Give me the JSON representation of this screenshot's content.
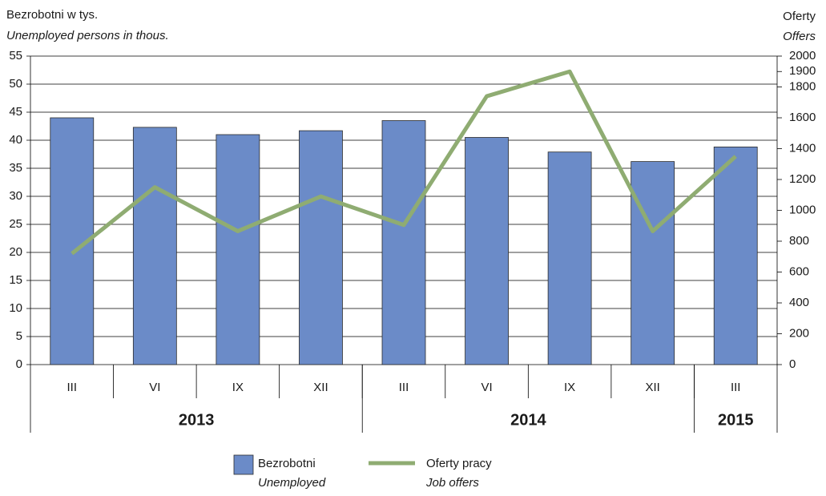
{
  "chart_data": {
    "type": "bar_line",
    "y_title": "Bezrobotni w tys.",
    "y_title_en": "Unemployed persons in thous.",
    "y2_title": "Oferty",
    "y2_title_en": "Offers",
    "categories": [
      "III",
      "VI",
      "IX",
      "XII",
      "III",
      "VI",
      "IX",
      "XII",
      "III"
    ],
    "groups": [
      {
        "label": "2013",
        "span": 4
      },
      {
        "label": "2014",
        "span": 4
      },
      {
        "label": "2015",
        "span": 1
      }
    ],
    "series": [
      {
        "name": "Bezrobotni",
        "name_en": "Unemployed",
        "type": "bar",
        "color": "#6b8bc8",
        "values": [
          44,
          42.3,
          41,
          41.7,
          43.5,
          40.5,
          37.9,
          36.2,
          38.8
        ]
      },
      {
        "name": "Oferty pracy",
        "name_en": "Job offers",
        "type": "line",
        "color": "#8fac72",
        "axis": "y2",
        "values": [
          720,
          1150,
          865,
          1090,
          905,
          1740,
          1900,
          865,
          1350
        ]
      }
    ],
    "ylim": [
      0,
      55
    ],
    "yticks": [
      0,
      5,
      10,
      15,
      20,
      25,
      30,
      35,
      40,
      45,
      50,
      55
    ],
    "y2lim": [
      0,
      2000
    ],
    "y2ticks": [
      0,
      200,
      400,
      600,
      800,
      1000,
      1200,
      1400,
      1600,
      1800,
      1900,
      2000
    ],
    "grid": true
  }
}
